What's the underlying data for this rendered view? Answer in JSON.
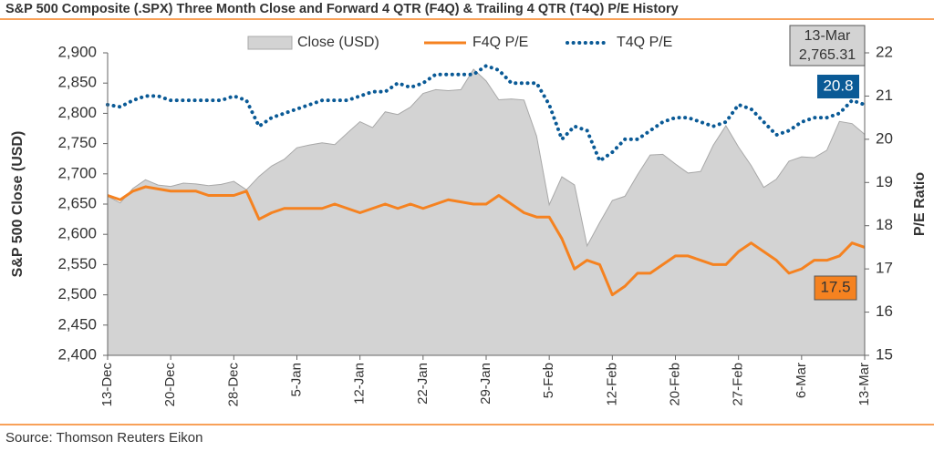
{
  "chart_data": {
    "type": "area-line",
    "title": "S&P 500 Composite (.SPX) Three Month Close and Forward 4 QTR (F4Q) & Trailing 4 QTR (T4Q) P/E History",
    "source": "Source: Thomson Reuters Eikon",
    "ylabel": "S&P 500 Close (USD)",
    "y2label": "P/E Ratio",
    "categories": [
      "13-Dec",
      null,
      null,
      null,
      null,
      "20-Dec",
      null,
      null,
      null,
      null,
      "28-Dec",
      null,
      null,
      null,
      null,
      "5-Jan",
      null,
      null,
      null,
      null,
      "12-Jan",
      null,
      null,
      null,
      null,
      "22-Jan",
      null,
      null,
      null,
      null,
      "29-Jan",
      null,
      null,
      null,
      null,
      "5-Feb",
      null,
      null,
      null,
      null,
      "12-Feb",
      null,
      null,
      null,
      null,
      "20-Feb",
      null,
      null,
      null,
      null,
      "27-Feb",
      null,
      null,
      null,
      null,
      "6-Mar",
      null,
      null,
      null,
      null,
      "13-Mar"
    ],
    "series": [
      {
        "name": "Close (USD)",
        "style": "area",
        "color": "#d3d3d3",
        "axis": "y",
        "values": [
          2662.85,
          2652.01,
          2675.81,
          2690.16,
          2681.47,
          2679.25,
          2684.57,
          2683.34,
          2680.5,
          2682.62,
          2687.54,
          2673.61,
          2695.81,
          2713.06,
          2723.99,
          2743.15,
          2747.71,
          2751.29,
          2748.23,
          2767.56,
          2786.24,
          2776.42,
          2802.56,
          2798.03,
          2810.3,
          2832.97,
          2839.13,
          2837.54,
          2839.25,
          2872.87,
          2853.53,
          2822.43,
          2823.81,
          2821.98,
          2762.13,
          2648.94,
          2695.14,
          2681.66,
          2581.0,
          2619.55,
          2656.0,
          2662.94,
          2698.63,
          2731.2,
          2732.22,
          2716.26,
          2701.33,
          2703.96,
          2747.3,
          2779.6,
          2744.28,
          2713.83,
          2677.67,
          2691.25,
          2720.94,
          2728.12,
          2726.8,
          2738.97,
          2786.57,
          2783.02,
          2765.31
        ]
      },
      {
        "name": "F4Q P/E",
        "style": "solid",
        "color": "#f58220",
        "axis": "y2",
        "values": [
          18.7,
          18.6,
          18.8,
          18.9,
          18.85,
          18.8,
          18.8,
          18.8,
          18.7,
          18.7,
          18.7,
          18.8,
          18.15,
          18.3,
          18.4,
          18.4,
          18.4,
          18.4,
          18.5,
          18.4,
          18.3,
          18.4,
          18.5,
          18.4,
          18.5,
          18.4,
          18.5,
          18.6,
          18.55,
          18.5,
          18.5,
          18.7,
          18.5,
          18.3,
          18.2,
          18.2,
          17.7,
          17.0,
          17.2,
          17.1,
          16.4,
          16.6,
          16.9,
          16.9,
          17.1,
          17.3,
          17.3,
          17.2,
          17.1,
          17.1,
          17.4,
          17.6,
          17.4,
          17.2,
          16.9,
          17.0,
          17.2,
          17.2,
          17.3,
          17.6,
          17.5
        ]
      },
      {
        "name": "T4Q P/E",
        "style": "dotted",
        "color": "#0a5a96",
        "axis": "y2",
        "values": [
          20.8,
          20.75,
          20.9,
          21.0,
          21.0,
          20.9,
          20.9,
          20.9,
          20.9,
          20.9,
          21.0,
          20.9,
          20.3,
          20.5,
          20.6,
          20.7,
          20.8,
          20.9,
          20.9,
          20.9,
          21.0,
          21.1,
          21.1,
          21.3,
          21.2,
          21.3,
          21.5,
          21.5,
          21.5,
          21.5,
          21.7,
          21.6,
          21.3,
          21.3,
          21.3,
          20.8,
          20.0,
          20.3,
          20.2,
          19.5,
          19.7,
          20.0,
          20.0,
          20.2,
          20.4,
          20.5,
          20.5,
          20.4,
          20.3,
          20.4,
          20.8,
          20.7,
          20.4,
          20.1,
          20.2,
          20.4,
          20.5,
          20.5,
          20.6,
          20.9,
          20.8
        ]
      }
    ],
    "annotations": [
      "13-Mar",
      "2,765.31",
      "20.8",
      "17.5"
    ],
    "ylim": [
      2400,
      2900
    ],
    "yticks": [
      {
        "value": 2400,
        "label": "2,400"
      },
      {
        "value": 2450,
        "label": "2,450"
      },
      {
        "value": 2500,
        "label": "2,500"
      },
      {
        "value": 2550,
        "label": "2,550"
      },
      {
        "value": 2600,
        "label": "2,600"
      },
      {
        "value": 2650,
        "label": "2,650"
      },
      {
        "value": 2700,
        "label": "2,700"
      },
      {
        "value": 2750,
        "label": "2,750"
      },
      {
        "value": 2800,
        "label": "2,800"
      },
      {
        "value": 2850,
        "label": "2,850"
      },
      {
        "value": 2900,
        "label": "2,900"
      }
    ],
    "y2lim": [
      15,
      22
    ],
    "y2ticks": [
      15,
      16,
      17,
      18,
      19,
      20,
      21,
      22
    ],
    "grid": false
  }
}
